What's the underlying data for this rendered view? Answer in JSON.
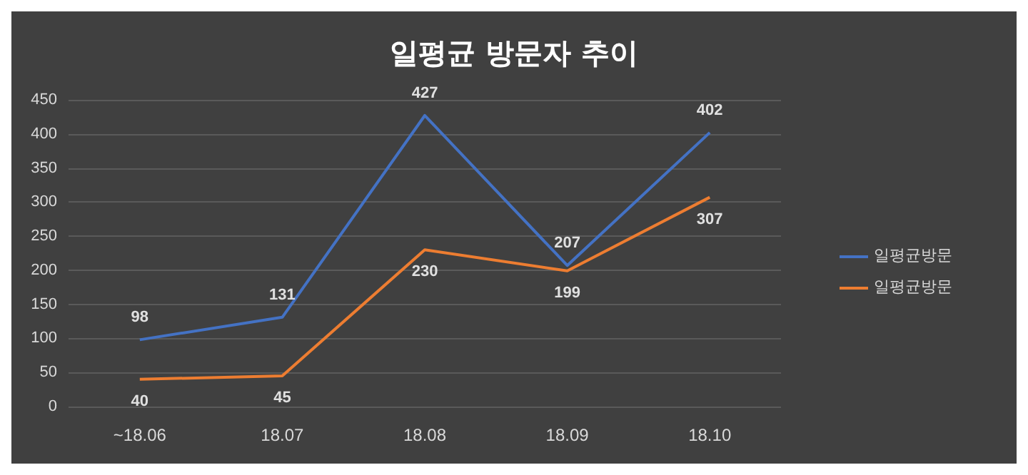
{
  "chart_data": {
    "type": "line",
    "title": "일평균 방문자 추이",
    "categories": [
      "~18.06",
      "18.07",
      "18.08",
      "18.09",
      "18.10"
    ],
    "series": [
      {
        "name": "일평균방문",
        "color": "#4472c4",
        "values": [
          98,
          131,
          427,
          207,
          402
        ]
      },
      {
        "name": "일평균방문",
        "color": "#ed7d31",
        "values": [
          40,
          45,
          230,
          199,
          307
        ]
      }
    ],
    "ylim": [
      0,
      450
    ],
    "yticks": [
      0,
      50,
      100,
      150,
      200,
      250,
      300,
      350,
      400,
      450
    ],
    "grid": "y",
    "legend": "right",
    "data_labels": true,
    "marker": "none",
    "line_style": "solid"
  }
}
